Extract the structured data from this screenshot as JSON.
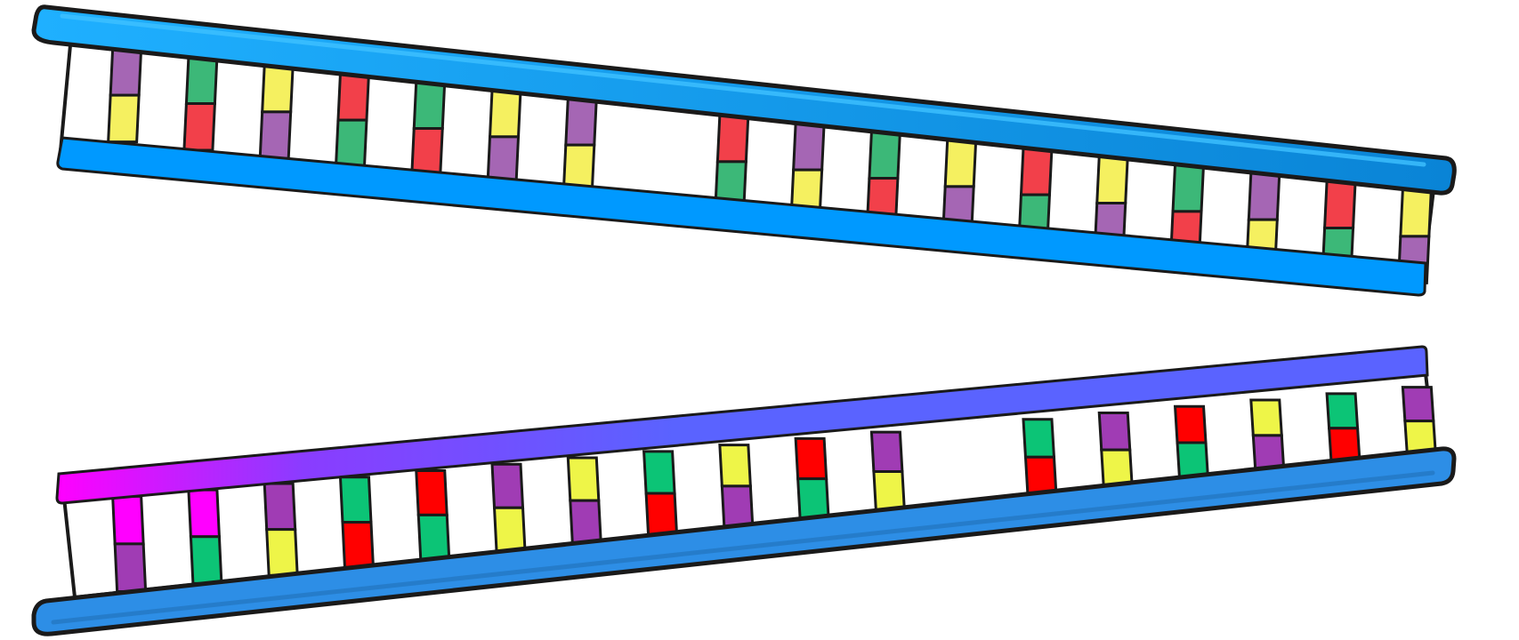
{
  "colors": {
    "outline": "#1a1a1a",
    "backbone_blue": "#0099ff",
    "backbone_blue_dark": "#0a84d6",
    "backbone_light": "#1fb0ff",
    "backbone_bottom_strand": "#2d8ee6",
    "gradient_magenta": "#ff00ff",
    "gradient_violet": "#8a3cff",
    "gradient_blue": "#5a63ff",
    "rung_white": "#ffffff"
  },
  "base_colors": {
    "A": "#a566b4",
    "T": "#f5f060",
    "G": "#3cb878",
    "C": "#f2404a",
    "M": "#ff00ff",
    "P": "#a03cb4",
    "Y": "#eef548",
    "E": "#0cc476",
    "R": "#ff0000"
  },
  "top_ladder": {
    "pairs": [
      [
        "A",
        "T"
      ],
      [
        "G",
        "C"
      ],
      [
        "T",
        "A"
      ],
      [
        "C",
        "G"
      ],
      [
        "G",
        "C"
      ],
      [
        "T",
        "A"
      ],
      [
        "A",
        "T"
      ],
      [
        "C",
        "G"
      ],
      [
        "A",
        "T"
      ],
      [
        "G",
        "C"
      ],
      [
        "T",
        "A"
      ],
      [
        "C",
        "G"
      ],
      [
        "T",
        "A"
      ],
      [
        "G",
        "C"
      ],
      [
        "A",
        "T"
      ],
      [
        "C",
        "G"
      ],
      [
        "T",
        "A"
      ]
    ],
    "gap_after": [
      6
    ]
  },
  "bottom_ladder": {
    "pairs": [
      [
        "M",
        "P"
      ],
      [
        "M",
        "E"
      ],
      [
        "P",
        "Y"
      ],
      [
        "E",
        "R"
      ],
      [
        "R",
        "E"
      ],
      [
        "P",
        "Y"
      ],
      [
        "Y",
        "P"
      ],
      [
        "E",
        "R"
      ],
      [
        "Y",
        "P"
      ],
      [
        "R",
        "E"
      ],
      [
        "P",
        "Y"
      ],
      [
        "E",
        "R"
      ],
      [
        "P",
        "Y"
      ],
      [
        "R",
        "E"
      ],
      [
        "Y",
        "P"
      ],
      [
        "E",
        "R"
      ],
      [
        "P",
        "Y"
      ]
    ],
    "gap_after": [
      10
    ]
  }
}
